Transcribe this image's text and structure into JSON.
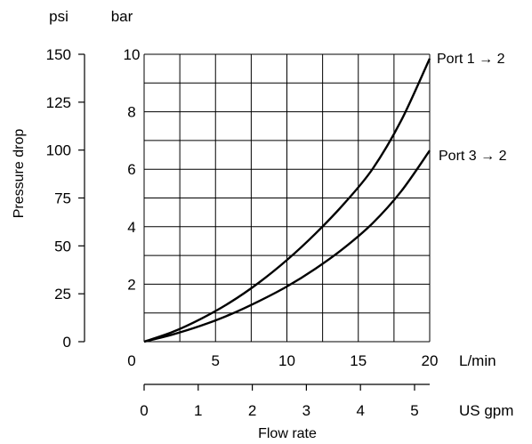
{
  "chart_data": {
    "type": "line",
    "ylabel": "Pressure drop",
    "xlabel": "Flow rate",
    "x_primary": {
      "unit": "L/min",
      "range": [
        0,
        20
      ],
      "ticks": [
        0,
        5,
        10,
        15,
        20
      ],
      "tick_labels": [
        "0",
        "5",
        "10",
        "15",
        "20"
      ]
    },
    "x_secondary": {
      "unit": "US gpm",
      "range": [
        0,
        5.28
      ],
      "ticks": [
        0,
        1,
        2,
        3,
        4,
        5
      ],
      "tick_labels": [
        "0",
        "1",
        "2",
        "3",
        "4",
        "5"
      ]
    },
    "y_primary": {
      "unit": "bar",
      "range": [
        0,
        10
      ],
      "ticks": [
        0,
        2,
        4,
        6,
        8,
        10
      ],
      "tick_labels": [
        "",
        "2",
        "4",
        "6",
        "8",
        "10"
      ]
    },
    "y_secondary": {
      "unit": "psi",
      "range": [
        0,
        150
      ],
      "ticks": [
        0,
        25,
        50,
        75,
        100,
        125,
        150
      ],
      "tick_labels": [
        "0",
        "25",
        "50",
        "75",
        "100",
        "125",
        "150"
      ]
    },
    "grid": true,
    "series": [
      {
        "name": "Port 1 → 2",
        "color": "#000000",
        "x": [
          0,
          2,
          4,
          6,
          8,
          10,
          12,
          14,
          16,
          18,
          20
        ],
        "y": [
          0,
          0.34,
          0.8,
          1.36,
          2.04,
          2.84,
          3.76,
          4.8,
          6.01,
          7.69,
          9.85
        ]
      },
      {
        "name": "Port 3 → 2",
        "color": "#000000",
        "x": [
          0,
          2,
          4,
          6,
          8,
          10,
          12,
          14,
          16,
          18,
          20
        ],
        "y": [
          0,
          0.25,
          0.56,
          0.94,
          1.4,
          1.92,
          2.54,
          3.26,
          4.12,
          5.23,
          6.65
        ]
      }
    ]
  }
}
